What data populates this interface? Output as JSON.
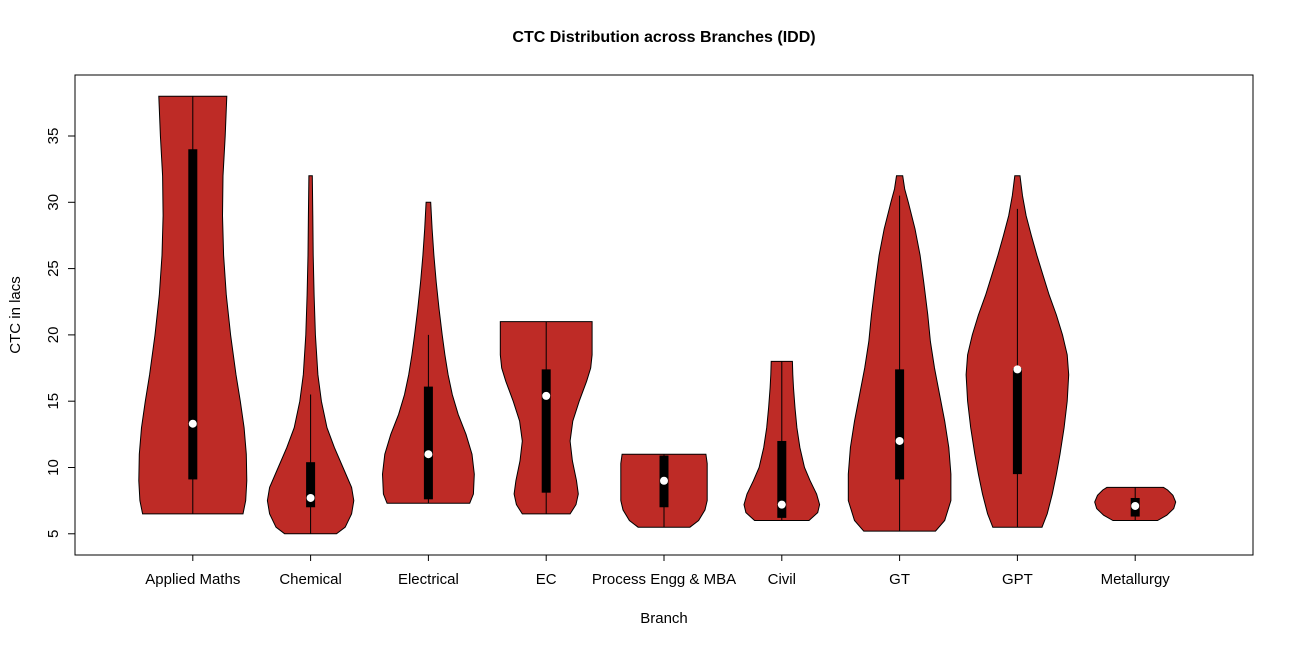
{
  "chart_data": {
    "type": "violin",
    "title": "CTC Distribution across Branches (IDD)",
    "xlabel": "Branch",
    "ylabel": "CTC in lacs",
    "y_ticks": [
      5,
      10,
      15,
      20,
      25,
      30,
      35
    ],
    "ylim": [
      3.4,
      39.6
    ],
    "grid": false,
    "legend": "none",
    "colors": {
      "violin_fill": "#BE2B26",
      "violin_stroke": "#000000",
      "box_fill": "#000000",
      "median_dot": "#ffffff",
      "axis": "#000000",
      "background": "#ffffff"
    },
    "categories": [
      "Applied Maths",
      "Chemical",
      "Electrical",
      "EC",
      "Process Engg & MBA",
      "Civil",
      "GT",
      "GPT",
      "Metallurgy"
    ],
    "series": [
      {
        "name": "Applied Maths",
        "width_scale": 1.0,
        "shape": [
          [
            6.5,
            0.93
          ],
          [
            7.5,
            0.98
          ],
          [
            9,
            1.0
          ],
          [
            11,
            0.99
          ],
          [
            13,
            0.95
          ],
          [
            15,
            0.88
          ],
          [
            17,
            0.8
          ],
          [
            20,
            0.7
          ],
          [
            23,
            0.62
          ],
          [
            26,
            0.57
          ],
          [
            29,
            0.55
          ],
          [
            32,
            0.56
          ],
          [
            35,
            0.6
          ],
          [
            38,
            0.63
          ]
        ],
        "box": {
          "whisker_lo": 6.5,
          "whisker_hi": 38,
          "q1": 9.1,
          "q3": 34,
          "median": 13.3
        }
      },
      {
        "name": "Chemical",
        "width_scale": 0.8,
        "shape": [
          [
            5.0,
            0.6
          ],
          [
            5.5,
            0.8
          ],
          [
            6.5,
            0.95
          ],
          [
            7.5,
            1.0
          ],
          [
            8.5,
            0.95
          ],
          [
            10,
            0.75
          ],
          [
            11.5,
            0.55
          ],
          [
            13,
            0.38
          ],
          [
            15,
            0.25
          ],
          [
            17,
            0.17
          ],
          [
            20,
            0.11
          ],
          [
            23,
            0.08
          ],
          [
            26,
            0.06
          ],
          [
            29,
            0.05
          ],
          [
            32,
            0.04
          ]
        ],
        "box": {
          "whisker_lo": 5.0,
          "whisker_hi": 15.5,
          "q1": 7.0,
          "q3": 10.4,
          "median": 7.7
        }
      },
      {
        "name": "Electrical",
        "width_scale": 0.85,
        "shape": [
          [
            7.3,
            0.9
          ],
          [
            8,
            0.98
          ],
          [
            9.5,
            1.0
          ],
          [
            11,
            0.95
          ],
          [
            12.5,
            0.82
          ],
          [
            14,
            0.65
          ],
          [
            15.5,
            0.52
          ],
          [
            17,
            0.43
          ],
          [
            18.5,
            0.36
          ],
          [
            20,
            0.3
          ],
          [
            22,
            0.23
          ],
          [
            24,
            0.17
          ],
          [
            26,
            0.12
          ],
          [
            28,
            0.08
          ],
          [
            30,
            0.05
          ]
        ],
        "box": {
          "whisker_lo": 7.3,
          "whisker_hi": 20,
          "q1": 7.6,
          "q3": 16.1,
          "median": 11.0
        }
      },
      {
        "name": "EC",
        "width_scale": 0.85,
        "shape": [
          [
            6.5,
            0.52
          ],
          [
            7.2,
            0.65
          ],
          [
            8,
            0.7
          ],
          [
            9,
            0.66
          ],
          [
            10.5,
            0.57
          ],
          [
            12,
            0.52
          ],
          [
            13.5,
            0.58
          ],
          [
            15,
            0.72
          ],
          [
            16.5,
            0.88
          ],
          [
            17.5,
            0.97
          ],
          [
            18.5,
            1.0
          ],
          [
            21,
            1.0
          ]
        ],
        "box": {
          "whisker_lo": 6.5,
          "whisker_hi": 21,
          "q1": 8.1,
          "q3": 17.4,
          "median": 15.4
        }
      },
      {
        "name": "Process Engg & MBA",
        "width_scale": 0.8,
        "shape": [
          [
            5.5,
            0.6
          ],
          [
            6,
            0.8
          ],
          [
            6.8,
            0.95
          ],
          [
            7.5,
            1.0
          ],
          [
            9,
            1.0
          ],
          [
            10.3,
            1.0
          ],
          [
            11,
            0.97
          ]
        ],
        "box": {
          "whisker_lo": 5.5,
          "whisker_hi": 11,
          "q1": 7.0,
          "q3": 10.9,
          "median": 9.0
        }
      },
      {
        "name": "Civil",
        "width_scale": 0.7,
        "shape": [
          [
            6,
            0.72
          ],
          [
            6.6,
            0.95
          ],
          [
            7.2,
            1.0
          ],
          [
            8,
            0.92
          ],
          [
            9,
            0.75
          ],
          [
            10,
            0.6
          ],
          [
            11.5,
            0.48
          ],
          [
            13,
            0.4
          ],
          [
            14.5,
            0.35
          ],
          [
            16,
            0.31
          ],
          [
            17,
            0.29
          ],
          [
            18,
            0.28
          ]
        ],
        "box": {
          "whisker_lo": 6.0,
          "whisker_hi": 18,
          "q1": 6.2,
          "q3": 12.0,
          "median": 7.2
        }
      },
      {
        "name": "GT",
        "width_scale": 0.95,
        "shape": [
          [
            5.2,
            0.7
          ],
          [
            6,
            0.88
          ],
          [
            7.5,
            1.0
          ],
          [
            9.5,
            1.0
          ],
          [
            11.5,
            0.96
          ],
          [
            13.5,
            0.88
          ],
          [
            15.5,
            0.78
          ],
          [
            17.5,
            0.68
          ],
          [
            19.5,
            0.6
          ],
          [
            21.5,
            0.55
          ],
          [
            24,
            0.47
          ],
          [
            26,
            0.4
          ],
          [
            28,
            0.3
          ],
          [
            30,
            0.17
          ],
          [
            31,
            0.1
          ],
          [
            32,
            0.06
          ]
        ],
        "box": {
          "whisker_lo": 5.2,
          "whisker_hi": 30.5,
          "q1": 9.1,
          "q3": 17.4,
          "median": 12.0
        }
      },
      {
        "name": "GPT",
        "width_scale": 0.95,
        "shape": [
          [
            5.5,
            0.48
          ],
          [
            6.5,
            0.58
          ],
          [
            8,
            0.68
          ],
          [
            9.5,
            0.76
          ],
          [
            11,
            0.83
          ],
          [
            13,
            0.91
          ],
          [
            15,
            0.97
          ],
          [
            17,
            1.0
          ],
          [
            18.5,
            0.97
          ],
          [
            20,
            0.88
          ],
          [
            21.5,
            0.76
          ],
          [
            23,
            0.62
          ],
          [
            24.5,
            0.5
          ],
          [
            26,
            0.38
          ],
          [
            27.5,
            0.27
          ],
          [
            29,
            0.17
          ],
          [
            30.5,
            0.1
          ],
          [
            32,
            0.05
          ]
        ],
        "box": {
          "whisker_lo": 5.5,
          "whisker_hi": 29.5,
          "q1": 9.5,
          "q3": 17.5,
          "median": 17.4
        }
      },
      {
        "name": "Metallurgy",
        "width_scale": 0.75,
        "shape": [
          [
            6,
            0.55
          ],
          [
            6.4,
            0.78
          ],
          [
            6.9,
            0.95
          ],
          [
            7.4,
            1.0
          ],
          [
            7.9,
            0.93
          ],
          [
            8.3,
            0.8
          ],
          [
            8.5,
            0.7
          ]
        ],
        "box": {
          "whisker_lo": 6.0,
          "whisker_hi": 8.5,
          "q1": 6.3,
          "q3": 7.7,
          "median": 7.1
        }
      }
    ]
  }
}
